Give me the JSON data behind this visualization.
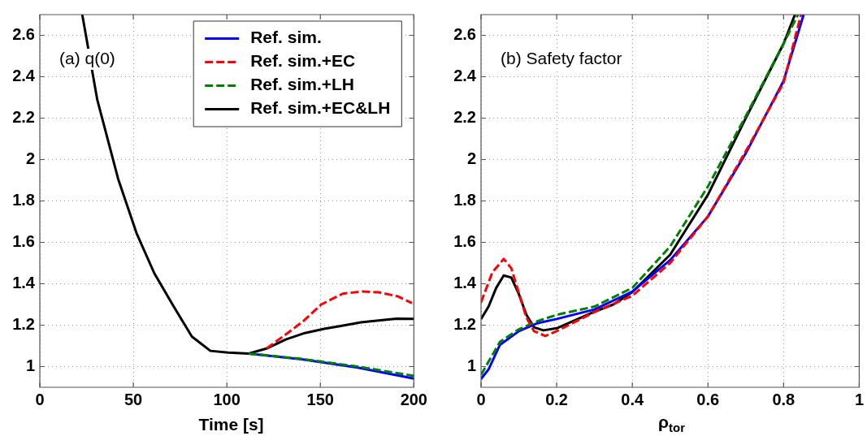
{
  "chart_data": [
    {
      "type": "line",
      "annotations": [
        "(a) q(0)"
      ],
      "xlabel": "Time [s]",
      "xlim": [
        0,
        200
      ],
      "xticks": [
        0,
        50,
        100,
        150,
        200
      ],
      "ylim": [
        0.9,
        2.7
      ],
      "yticks": [
        1,
        1.2,
        1.4,
        1.6,
        1.8,
        2,
        2.2,
        2.4,
        2.6
      ],
      "grid": true,
      "legend": "top right",
      "marker": "none",
      "series": [
        {
          "name": "Ref. sim.",
          "color": "#0000ff",
          "line_style": "solid",
          "x": [
            111.7,
            140,
            170,
            200
          ],
          "values": [
            1.063,
            1.035,
            0.995,
            0.942
          ]
        },
        {
          "name": "Ref. sim.+EC",
          "color": "#ff0000",
          "line_style": "dashed",
          "x": [
            121.2,
            131.5,
            141,
            150.5,
            162,
            172.5,
            181,
            191.5,
            199
          ],
          "values": [
            1.087,
            1.155,
            1.22,
            1.3,
            1.352,
            1.363,
            1.359,
            1.339,
            1.306
          ]
        },
        {
          "name": "Ref. sim.+LH",
          "color": "#008000",
          "line_style": "dashed",
          "x": [
            111.7,
            140,
            170,
            200
          ],
          "values": [
            1.063,
            1.037,
            1.0,
            0.955
          ]
        },
        {
          "name": "Ref. sim.+EC&LH",
          "color": "#000000",
          "line_style": "solid",
          "x": [
            22.7,
            30.7,
            41.9,
            51.7,
            61.2,
            71.4,
            81.3,
            91.2,
            100.7,
            111.7,
            121.2,
            131.5,
            141.7,
            152,
            161.5,
            171.7,
            181,
            190.8,
            200
          ],
          "values": [
            2.7,
            2.29,
            1.906,
            1.645,
            1.451,
            1.293,
            1.145,
            1.076,
            1.068,
            1.063,
            1.087,
            1.131,
            1.162,
            1.182,
            1.197,
            1.214,
            1.223,
            1.231,
            1.23
          ]
        }
      ]
    },
    {
      "type": "line",
      "annotations": [
        "(b) Safety factor"
      ],
      "xlabel": "ρ$_{tor}$",
      "xlim": [
        0,
        1
      ],
      "xticks": [
        0,
        0.2,
        0.4,
        0.6,
        0.8,
        1
      ],
      "ylim": [
        0.9,
        2.7
      ],
      "yticks": [
        1,
        1.2,
        1.4,
        1.6,
        1.8,
        2,
        2.2,
        2.4,
        2.6
      ],
      "grid": true,
      "legend": false,
      "marker": "none",
      "series": [
        {
          "color": "#0000ff",
          "line_style": "solid",
          "x": [
            0,
            0.02,
            0.05,
            0.1,
            0.15,
            0.2,
            0.3,
            0.4,
            0.5,
            0.6,
            0.7,
            0.8,
            0.853
          ],
          "values": [
            0.94,
            0.987,
            1.105,
            1.171,
            1.21,
            1.23,
            1.276,
            1.362,
            1.514,
            1.725,
            2.03,
            2.38,
            2.7
          ]
        },
        {
          "color": "#ff0000",
          "line_style": "dashed",
          "x": [
            0,
            0.03,
            0.06,
            0.08,
            0.1,
            0.12,
            0.14,
            0.17,
            0.2,
            0.3,
            0.4,
            0.5,
            0.6,
            0.7,
            0.8,
            0.846
          ],
          "values": [
            1.31,
            1.455,
            1.52,
            1.475,
            1.356,
            1.237,
            1.171,
            1.148,
            1.171,
            1.263,
            1.342,
            1.5,
            1.725,
            2.04,
            2.37,
            2.7
          ]
        },
        {
          "color": "#008000",
          "line_style": "dashed",
          "x": [
            0,
            0.05,
            0.1,
            0.15,
            0.2,
            0.3,
            0.4,
            0.5,
            0.6,
            0.7,
            0.8,
            0.838
          ],
          "values": [
            0.96,
            1.12,
            1.18,
            1.22,
            1.25,
            1.29,
            1.38,
            1.58,
            1.87,
            2.21,
            2.56,
            2.7
          ]
        },
        {
          "color": "#000000",
          "line_style": "solid",
          "x": [
            0,
            0.02,
            0.04,
            0.06,
            0.08,
            0.1,
            0.12,
            0.14,
            0.165,
            0.2,
            0.25,
            0.3,
            0.35,
            0.4,
            0.5,
            0.6,
            0.7,
            0.8,
            0.83
          ],
          "values": [
            1.23,
            1.29,
            1.38,
            1.44,
            1.43,
            1.35,
            1.25,
            1.19,
            1.175,
            1.185,
            1.225,
            1.265,
            1.3,
            1.36,
            1.54,
            1.83,
            2.2,
            2.56,
            2.7
          ]
        }
      ]
    }
  ]
}
